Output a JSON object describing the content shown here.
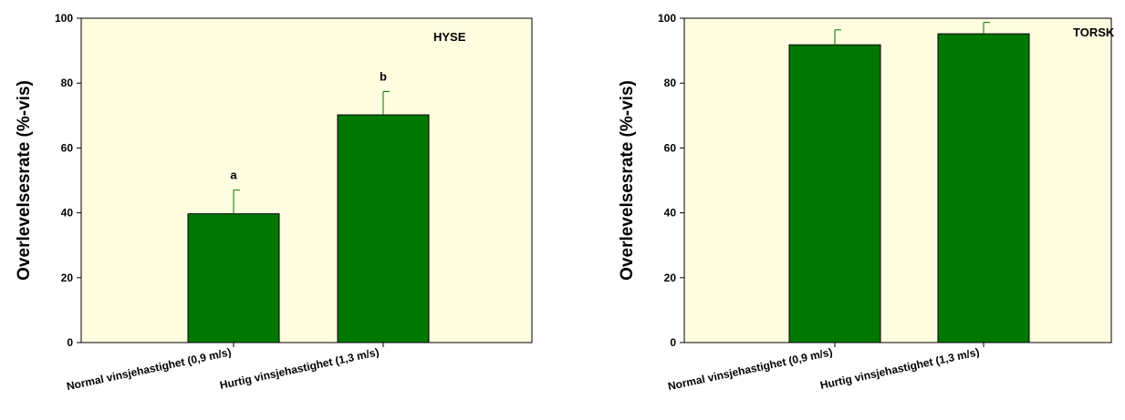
{
  "colors": {
    "plot_background": "#FFFDE0",
    "bar_fill": "#007800",
    "bar_stroke": "#000000",
    "error_bar": "#007800"
  },
  "chart_data": [
    {
      "type": "bar",
      "title": "HYSE",
      "ylabel": "Overlevelsesrate (%-vis)",
      "xlabel": "",
      "ylim": [
        0,
        100
      ],
      "yticks": [
        0,
        20,
        40,
        60,
        80,
        100
      ],
      "categories": [
        "Normal vinsjehastighet (0,9 m/s)",
        "Hurtig vinsjehastighet (1,3 m/s)"
      ],
      "values": [
        39.7,
        70.2
      ],
      "errors": [
        7.3,
        7.2
      ],
      "annotations": [
        "a",
        "b"
      ],
      "grid": false,
      "legend": "none"
    },
    {
      "type": "bar",
      "title": "TORSK",
      "ylabel": "Overlevelsesrate (%-vis)",
      "xlabel": "",
      "ylim": [
        0,
        100
      ],
      "yticks": [
        0,
        20,
        40,
        60,
        80,
        100
      ],
      "categories": [
        "Normal vinsjehastighet (0,9 m/s)",
        "Hurtig vinsjehastighet (1,3 m/s)"
      ],
      "values": [
        91.8,
        95.2
      ],
      "errors": [
        4.6,
        3.5
      ],
      "annotations": [
        "",
        ""
      ],
      "grid": false,
      "legend": "none"
    }
  ]
}
